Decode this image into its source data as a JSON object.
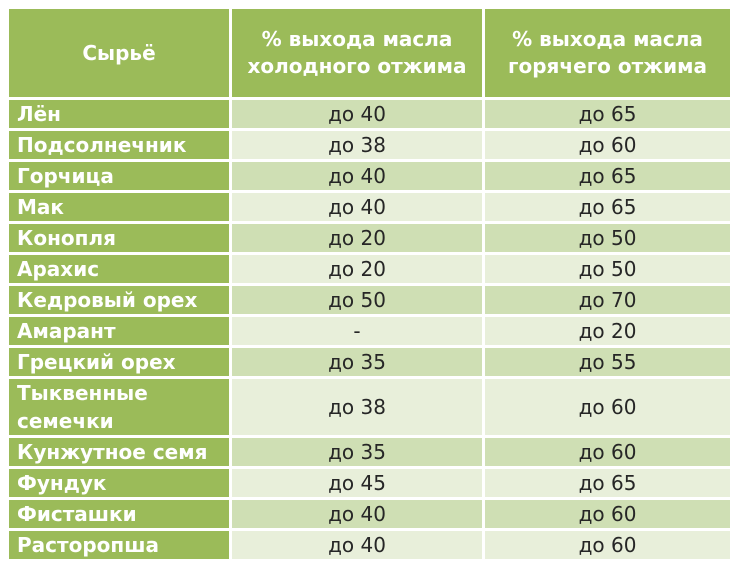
{
  "table": {
    "headers": [
      "Сырьё",
      "% выхода масла холодного отжима",
      "% выхода масла горячего отжима"
    ],
    "rows": [
      {
        "name": "Лён",
        "cold": "до 40",
        "hot": "до 65"
      },
      {
        "name": "Подсолнечник",
        "cold": "до 38",
        "hot": "до 60"
      },
      {
        "name": "Горчица",
        "cold": "до 40",
        "hot": "до 65"
      },
      {
        "name": "Мак",
        "cold": "до 40",
        "hot": "до 65"
      },
      {
        "name": "Конопля",
        "cold": "до 20",
        "hot": "до 50"
      },
      {
        "name": "Арахис",
        "cold": "до 20",
        "hot": "до 50"
      },
      {
        "name": "Кедровый орех",
        "cold": "до 50",
        "hot": "до 70"
      },
      {
        "name": "Амарант",
        "cold": "-",
        "hot": "до 20"
      },
      {
        "name": "Грецкий орех",
        "cold": "до 35",
        "hot": "до 55"
      },
      {
        "name": "Тыквенные семечки",
        "cold": "до 38",
        "hot": "до 60"
      },
      {
        "name": "Кунжутное семя",
        "cold": "до 35",
        "hot": "до 60"
      },
      {
        "name": "Фундук",
        "cold": "до 45",
        "hot": "до 65"
      },
      {
        "name": "Фисташки",
        "cold": "до 40",
        "hot": "до 60"
      },
      {
        "name": "Расторопша",
        "cold": "до 40",
        "hot": "до 60"
      }
    ]
  },
  "colors": {
    "header_bg": "#9bbb59",
    "header_text": "#ffffff",
    "row_light": "#e8efda",
    "row_dark": "#cfdfb4"
  }
}
